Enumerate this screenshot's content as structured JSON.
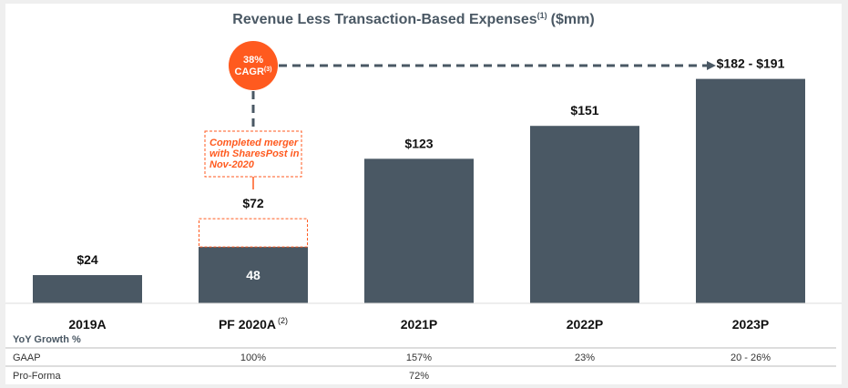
{
  "chart_data": {
    "type": "bar",
    "title": "Revenue Less Transaction-Based Expenses",
    "title_superscript": "(1)",
    "title_unit": "($mm)",
    "categories": [
      "2019A",
      "PF 2020A",
      "2021P",
      "2022P",
      "2023P"
    ],
    "category_superscripts": [
      "",
      "(2)",
      "",
      "",
      ""
    ],
    "values": [
      24,
      72,
      123,
      151,
      191
    ],
    "gaap_portion": [
      24,
      48,
      123,
      151,
      191
    ],
    "range_low": [
      null,
      null,
      null,
      null,
      182
    ],
    "data_labels": [
      "$24",
      "$72",
      "$123",
      "$151",
      "$182 - $191"
    ],
    "inner_labels": [
      "",
      "48",
      "",
      "",
      ""
    ],
    "ylim": [
      0,
      200
    ],
    "grid": false,
    "annotations": {
      "cagr_value": "38%",
      "cagr_label": "CAGR",
      "cagr_superscript": "(3)",
      "merger_note": [
        "Completed merger",
        "with SharesPost in",
        "Nov-2020"
      ]
    },
    "growth_table": {
      "header": "YoY Growth %",
      "rows": [
        {
          "label": "GAAP",
          "values": [
            "",
            "100%",
            "157%",
            "23%",
            "20 - 26%"
          ]
        },
        {
          "label": "Pro-Forma",
          "values": [
            "",
            "",
            "72%",
            "",
            ""
          ]
        }
      ]
    }
  },
  "colors": {
    "bar": "#4a5864",
    "accent": "#ff5a1f",
    "title": "#4a5864",
    "dashed_line": "#4a5864"
  }
}
